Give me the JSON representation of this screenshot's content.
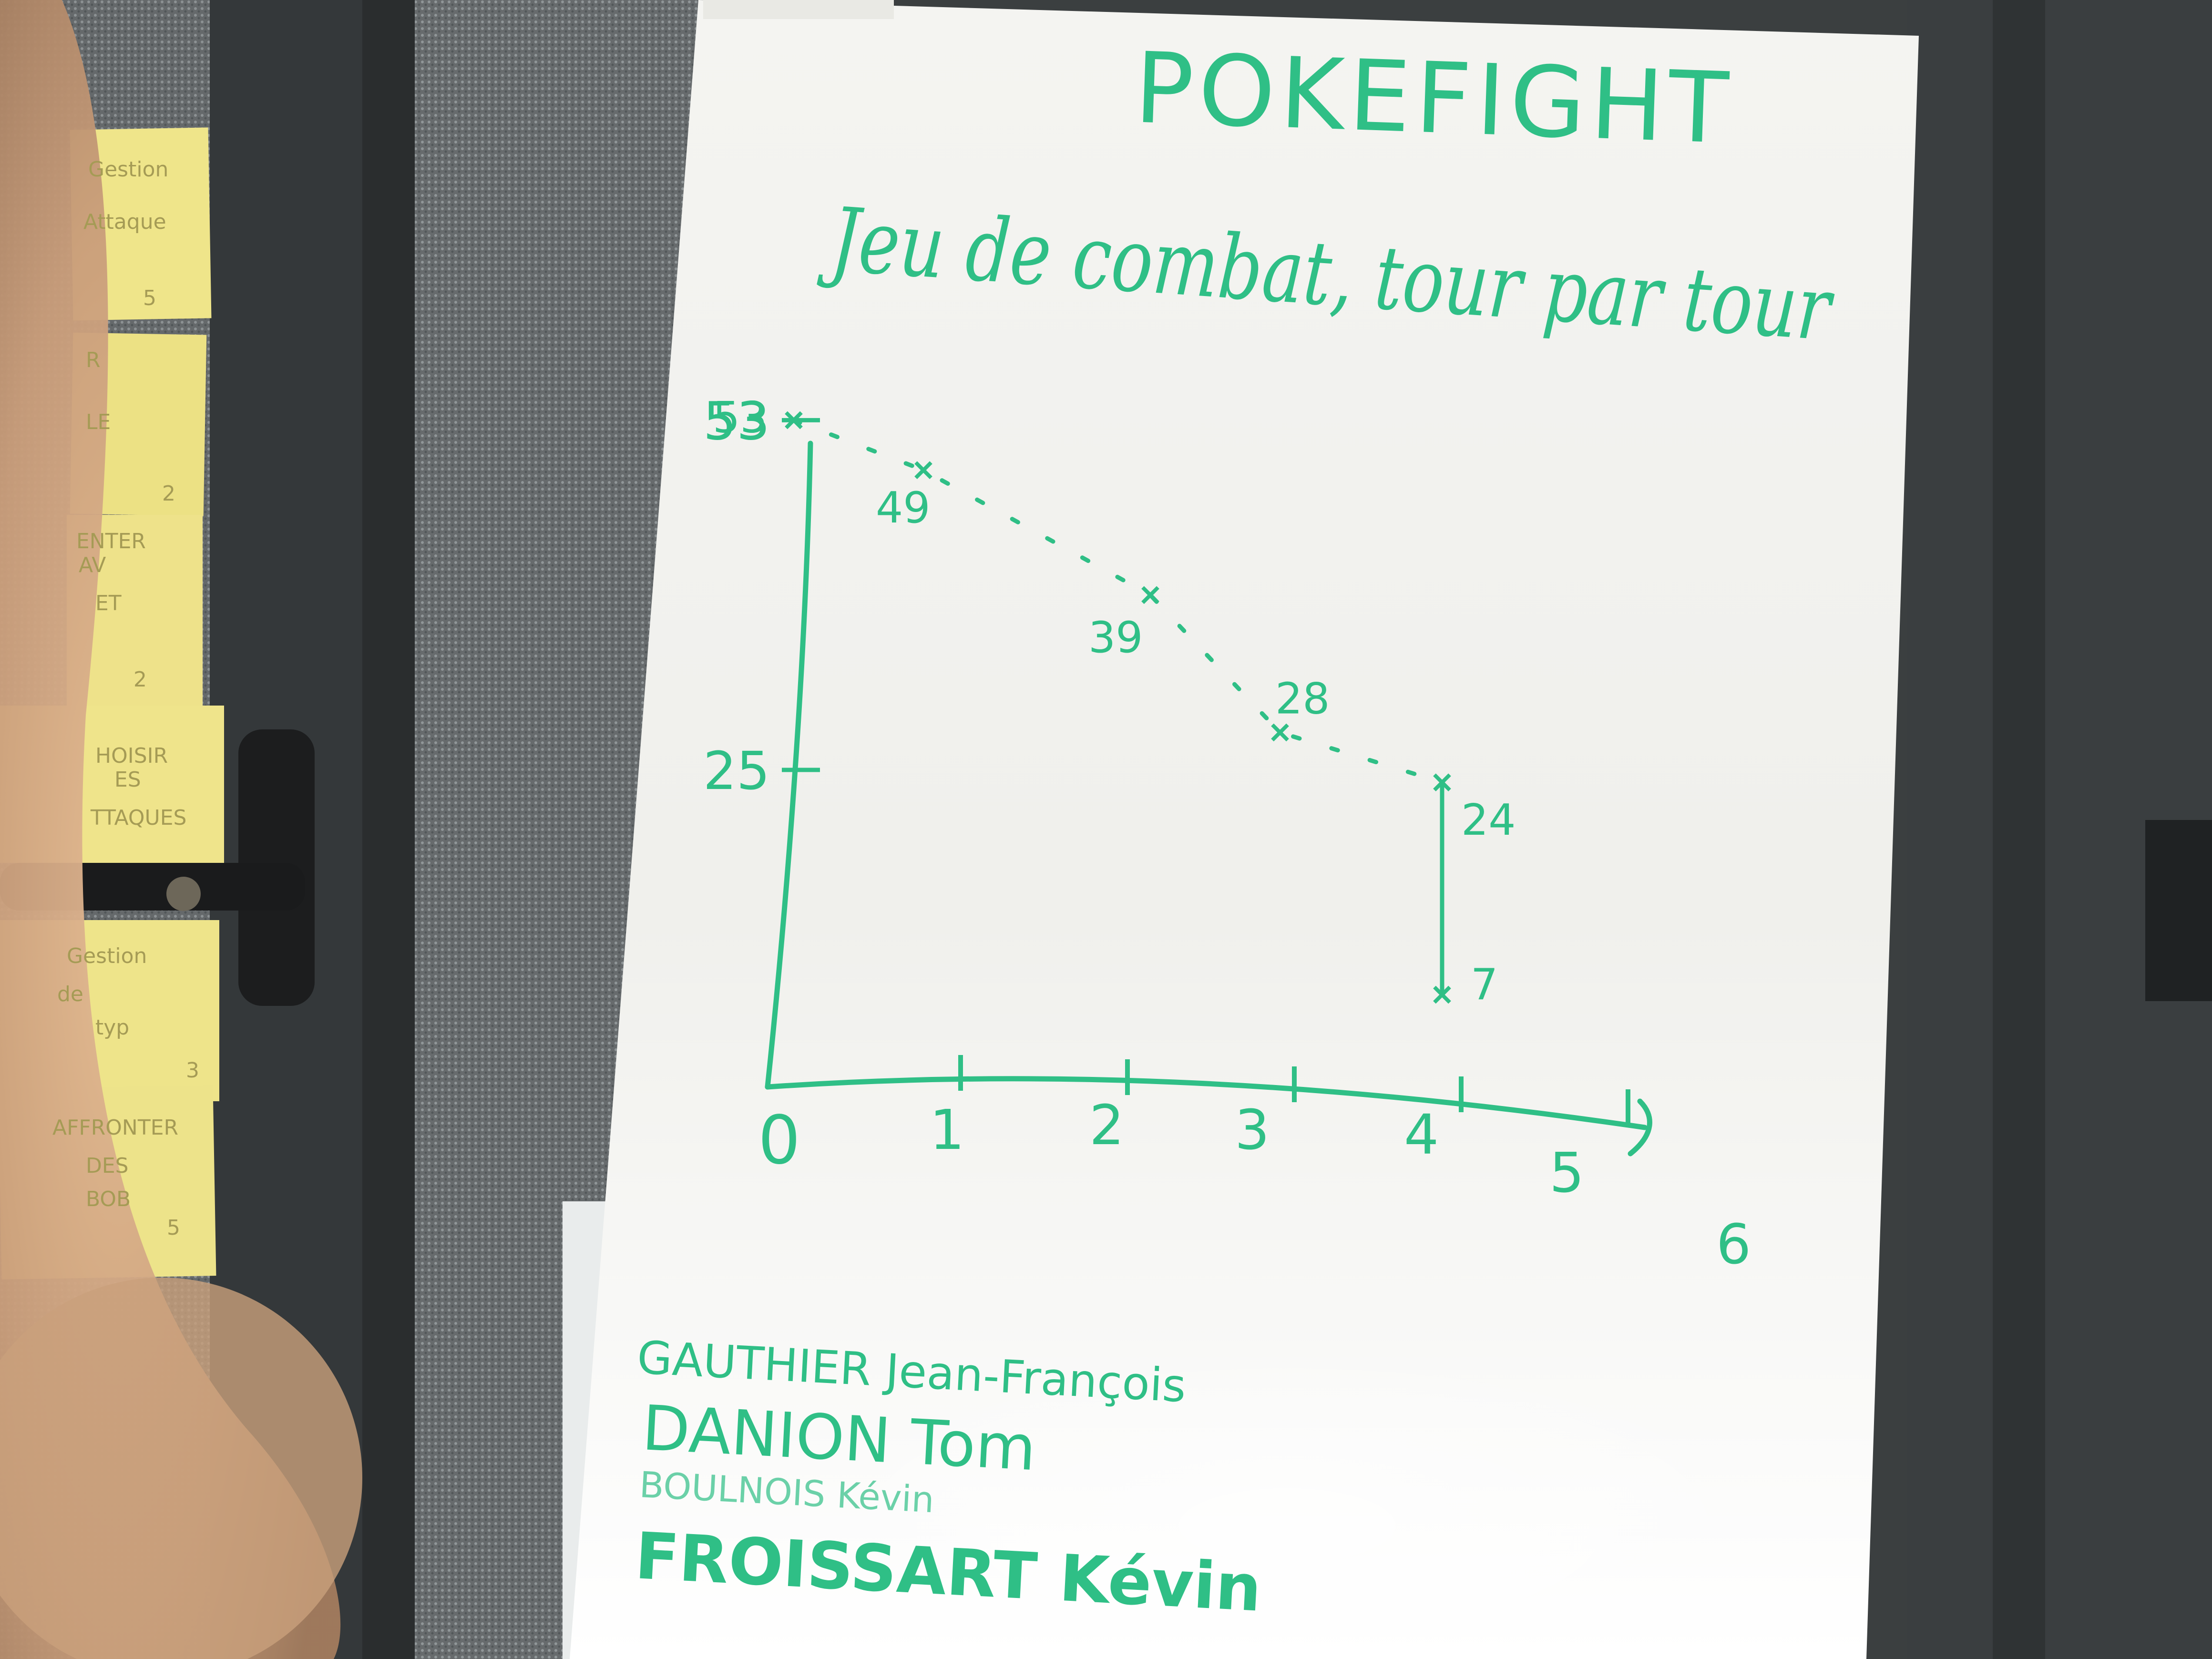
{
  "board": {
    "title": "POKEFIGHT",
    "subtitle": "Jeu de combat, tour par tour",
    "team": [
      "GAUTHIER Jean-François",
      "DANION Tom",
      "BOULNOIS Kévin",
      "FROISSART Kévin"
    ]
  },
  "chart_data": {
    "type": "line",
    "x": [
      0,
      0.8,
      2.2,
      3,
      4,
      4
    ],
    "values": [
      53,
      49,
      39,
      28,
      24,
      7
    ],
    "point_labels": [
      "53",
      "49",
      "39",
      "28",
      "24",
      "7"
    ],
    "x_ticks": [
      "0",
      "1",
      "2",
      "3",
      "4",
      "5",
      "6"
    ],
    "y_ticks": [
      "53",
      "25"
    ],
    "ylim": [
      0,
      60
    ],
    "xlim": [
      0,
      6
    ],
    "line_style": "dotted",
    "color": "#2fbf86",
    "grid": false
  },
  "sticky_notes": [
    {
      "lines": [
        "Gestion",
        "Attaque",
        "5"
      ]
    },
    {
      "lines": [
        "R",
        "LE",
        "2"
      ]
    },
    {
      "lines": [
        "ENTER",
        "AV",
        "ET",
        "2"
      ]
    },
    {
      "lines": [
        "HOISIR",
        "ES",
        "TTAQUES"
      ]
    },
    {
      "lines": [
        "Gestion",
        "de",
        "typ",
        "3"
      ]
    },
    {
      "lines": [
        "AFFRONTER",
        "DES",
        "BOB",
        "5"
      ]
    }
  ],
  "colors": {
    "marker": "#2fbf86",
    "board": "#f2f2ef",
    "frame": "#3a3e3f",
    "sticky": "#efe58a"
  }
}
